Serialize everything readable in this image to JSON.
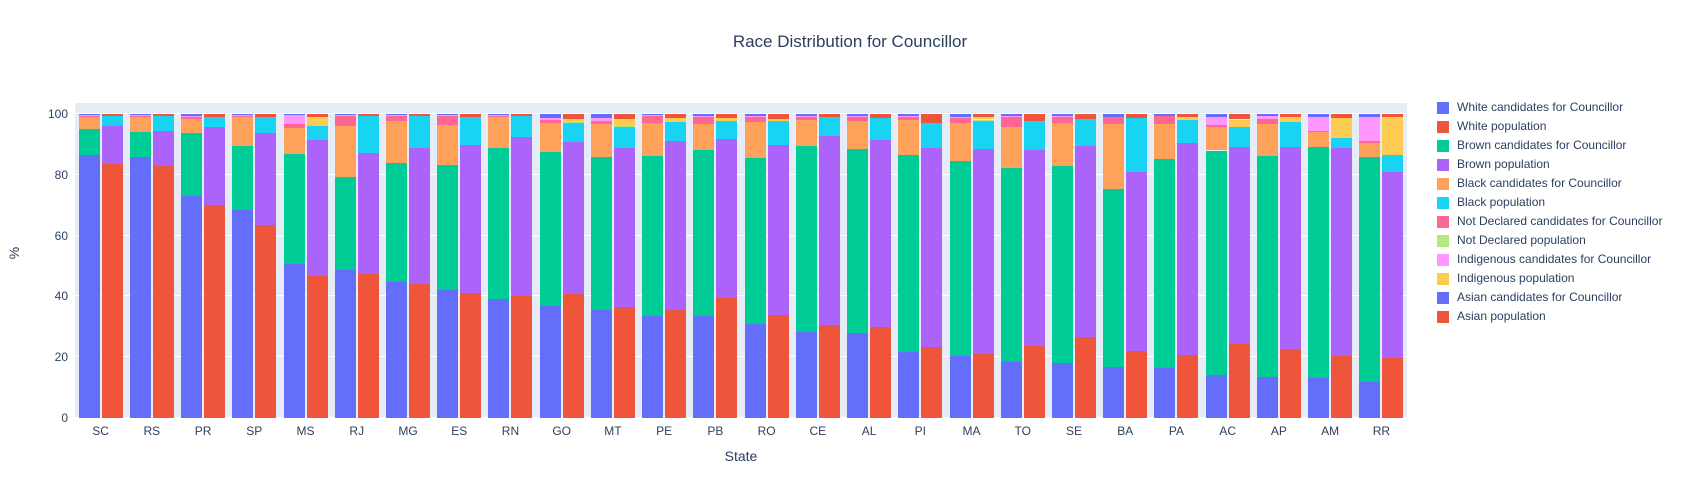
{
  "chart_data": {
    "type": "bar",
    "subtype": "stacked-percent-grouped",
    "title": "Race Distribution for Councillor",
    "xlabel": "State",
    "ylabel": "%",
    "ylim": [
      0,
      100
    ],
    "yticks": [
      0,
      20,
      40,
      60,
      80,
      100
    ],
    "grid": true,
    "legend_position": "right",
    "plot_bg": "#e5ecf6",
    "grid_color": "#ffffff",
    "text_color": "#2a3f5f",
    "categories": [
      "SC",
      "RS",
      "PR",
      "SP",
      "MS",
      "RJ",
      "MG",
      "ES",
      "RN",
      "GO",
      "MT",
      "PE",
      "PB",
      "RO",
      "CE",
      "AL",
      "PI",
      "MA",
      "TO",
      "SE",
      "BA",
      "PA",
      "AC",
      "AP",
      "AM",
      "RR"
    ],
    "series": [
      {
        "name": "White candidates for Councillor",
        "color": "#636EFA",
        "bar": "candidates",
        "values": [
          86.5,
          86.0,
          73.0,
          68.3,
          50.5,
          48.7,
          44.8,
          42.0,
          39.0,
          36.8,
          35.5,
          33.5,
          33.5,
          31.0,
          28.4,
          27.9,
          21.8,
          20.5,
          18.5,
          18.0,
          16.7,
          16.6,
          14.0,
          13.5,
          13.0,
          12.0
        ]
      },
      {
        "name": "White population",
        "color": "#EF553B",
        "bar": "population",
        "values": [
          83.5,
          83.0,
          70.0,
          63.6,
          46.7,
          47.3,
          44.0,
          41.2,
          40.1,
          40.7,
          36.5,
          35.5,
          39.4,
          34.0,
          30.6,
          30.0,
          23.5,
          21.0,
          23.6,
          26.8,
          22.0,
          20.8,
          24.4,
          22.8,
          20.5,
          19.8
        ]
      },
      {
        "name": "Brown candidates for Councillor",
        "color": "#00CC96",
        "bar": "candidates",
        "values": [
          8.6,
          8.0,
          20.7,
          21.1,
          36.2,
          30.6,
          39.1,
          41.2,
          49.8,
          50.6,
          50.5,
          52.6,
          54.8,
          54.5,
          61.0,
          60.7,
          64.8,
          64.0,
          63.8,
          64.9,
          58.5,
          68.6,
          74.0,
          72.8,
          76.3,
          74.0
        ]
      },
      {
        "name": "Brown population",
        "color": "#AB63FA",
        "bar": "population",
        "values": [
          12.4,
          11.3,
          25.6,
          30.1,
          44.8,
          39.9,
          44.8,
          48.7,
          52.5,
          50.0,
          52.2,
          55.6,
          52.5,
          55.9,
          62.3,
          61.6,
          65.3,
          67.4,
          64.7,
          62.6,
          59.0,
          69.6,
          64.9,
          66.5,
          68.3,
          61.2
        ]
      },
      {
        "name": "Black candidates for Councillor",
        "color": "#FFA15A",
        "bar": "candidates",
        "values": [
          4.0,
          5.3,
          4.7,
          9.8,
          8.7,
          16.6,
          13.9,
          13.2,
          10.1,
          9.5,
          10.6,
          11.0,
          8.4,
          11.8,
          8.7,
          9.0,
          11.4,
          12.4,
          13.4,
          14.1,
          21.5,
          11.5,
          7.6,
          10.3,
          4.7,
          4.6
        ]
      },
      {
        "name": "Black population",
        "color": "#19D3F3",
        "bar": "population",
        "values": [
          3.4,
          5.2,
          3.4,
          5.2,
          4.7,
          12.0,
          10.4,
          9.2,
          6.6,
          6.5,
          7.1,
          6.5,
          5.9,
          7.7,
          6.0,
          7.1,
          8.2,
          9.4,
          9.5,
          9.1,
          17.7,
          7.6,
          6.5,
          8.0,
          3.3,
          5.5
        ]
      },
      {
        "name": "Not Declared candidates for Councillor",
        "color": "#FF6692",
        "bar": "candidates",
        "values": [
          0.3,
          0.2,
          0.8,
          0.3,
          1.3,
          3.5,
          1.6,
          3.1,
          0.7,
          1.1,
          1.1,
          2.4,
          2.4,
          1.9,
          1.3,
          1.5,
          1.1,
          1.7,
          3.3,
          2.2,
          2.4,
          2.5,
          0.9,
          1.8,
          0.5,
          0.6
        ]
      },
      {
        "name": "Not Declared population",
        "color": "#B6E880",
        "bar": "population",
        "values": [
          0,
          0,
          0,
          0,
          0,
          0,
          0,
          0,
          0,
          0.2,
          0.1,
          0.2,
          0,
          0,
          0,
          0,
          0,
          0.4,
          0,
          0,
          0,
          0,
          0,
          0,
          0.3,
          0
        ]
      },
      {
        "name": "Indigenous candidates for Councillor",
        "color": "#FF97FF",
        "bar": "candidates",
        "values": [
          0.2,
          0.1,
          0.3,
          0.1,
          3.1,
          0.2,
          0.2,
          0.1,
          0.1,
          0.6,
          0.9,
          0.1,
          0.1,
          0.1,
          0.1,
          0.1,
          0.1,
          0.5,
          0.2,
          0.1,
          0,
          0,
          2.6,
          0.8,
          4.5,
          7.8
        ]
      },
      {
        "name": "Indigenous population",
        "color": "#FECB52",
        "bar": "population",
        "values": [
          0,
          0,
          0,
          0,
          2.9,
          0,
          0,
          0,
          0,
          0.8,
          2.5,
          0.8,
          0.9,
          0.9,
          0,
          0,
          0,
          0.7,
          0,
          0,
          0,
          0.9,
          2.4,
          1.8,
          6.2,
          12.5
        ]
      },
      {
        "name": "Asian candidates for Councillor",
        "color": "#636EFA",
        "bar": "candidates",
        "values": [
          0.4,
          0.4,
          0.5,
          0.4,
          0.2,
          0.4,
          0.4,
          0.4,
          0.3,
          1.4,
          1.4,
          0.4,
          0.8,
          0.7,
          0.5,
          0.8,
          0.8,
          0.9,
          0.8,
          0.7,
          0.9,
          0.8,
          0.9,
          0.8,
          1.0,
          1.0
        ]
      },
      {
        "name": "Asian population",
        "color": "#EF553B",
        "bar": "population",
        "values": [
          0.7,
          0.5,
          1.0,
          1.1,
          0.9,
          0.8,
          0.8,
          0.9,
          0.8,
          1.8,
          1.6,
          1.4,
          1.3,
          1.5,
          1.1,
          1.3,
          3.0,
          1.1,
          2.2,
          1.5,
          1.3,
          1.1,
          1.8,
          0.9,
          1.4,
          1.0
        ]
      }
    ]
  }
}
